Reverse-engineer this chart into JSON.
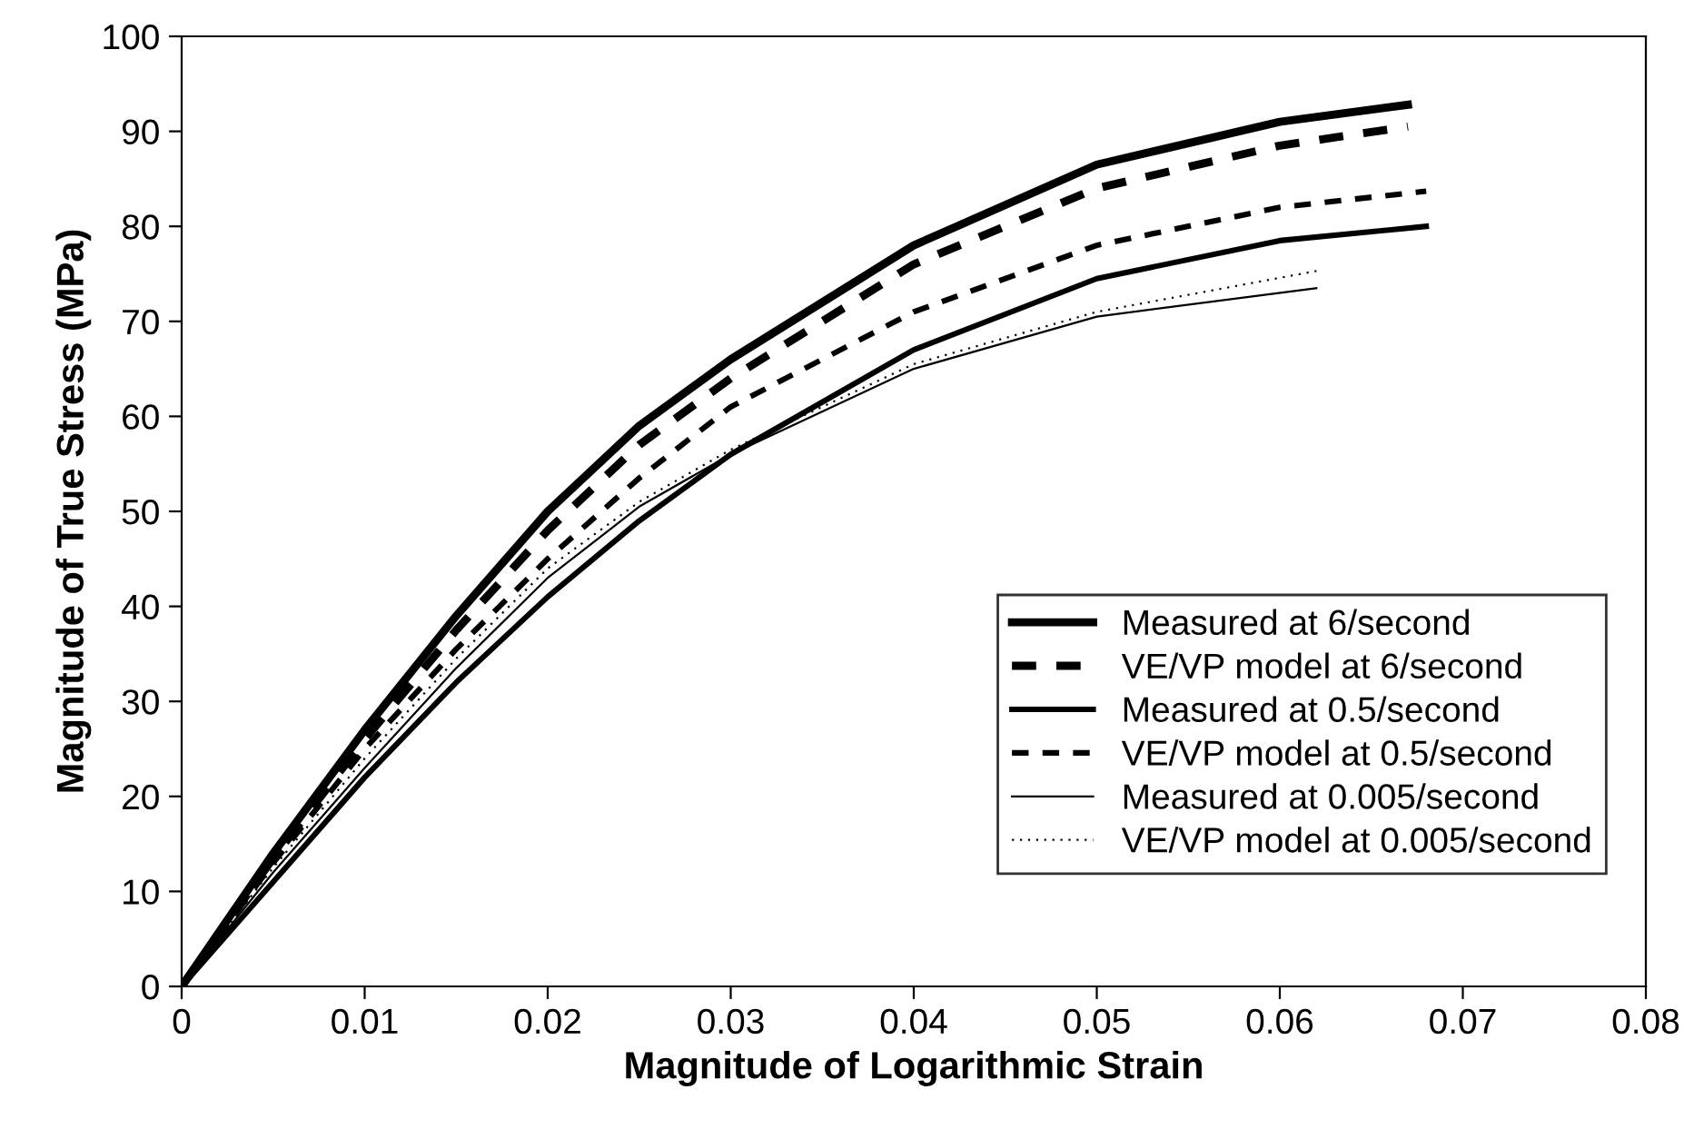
{
  "chart_data": {
    "type": "line",
    "xlabel": "Magnitude of Logarithmic Strain",
    "ylabel": "Magnitude of True Stress (MPa)",
    "xlim": [
      0,
      0.08
    ],
    "ylim": [
      0,
      100
    ],
    "xticks": [
      0,
      0.01,
      0.02,
      0.03,
      0.04,
      0.05,
      0.06,
      0.07,
      0.08
    ],
    "yticks": [
      0,
      10,
      20,
      30,
      40,
      50,
      60,
      70,
      80,
      90,
      100
    ],
    "grid": false,
    "legend": "bottom right",
    "marker": "none",
    "series": [
      {
        "name": "Measured at 6/second",
        "color": "#000000",
        "line_style": "solid",
        "x": [
          0,
          0.005,
          0.01,
          0.015,
          0.02,
          0.025,
          0.03,
          0.04,
          0.05,
          0.06,
          0.067
        ],
        "values": [
          0,
          14,
          27,
          39,
          50,
          59,
          66,
          78,
          86.5,
          91,
          92.8
        ]
      },
      {
        "name": "VE/VP model at 6/second",
        "color": "#000000",
        "line_style": "dashed",
        "x": [
          0,
          0.005,
          0.01,
          0.015,
          0.02,
          0.025,
          0.03,
          0.04,
          0.05,
          0.06,
          0.067
        ],
        "values": [
          0,
          13.5,
          26,
          37.5,
          48,
          57,
          64,
          76,
          84,
          88.5,
          90.5
        ]
      },
      {
        "name": "Measured at 0.5/second",
        "color": "#000000",
        "line_style": "solid",
        "x": [
          0,
          0.005,
          0.01,
          0.015,
          0.02,
          0.025,
          0.03,
          0.04,
          0.05,
          0.06,
          0.068
        ],
        "values": [
          0,
          11,
          22,
          32,
          41,
          49,
          56,
          67,
          74.5,
          78.5,
          80
        ]
      },
      {
        "name": "VE/VP model at 0.5/second",
        "color": "#000000",
        "line_style": "dashed",
        "x": [
          0,
          0.005,
          0.01,
          0.015,
          0.02,
          0.025,
          0.03,
          0.04,
          0.05,
          0.06,
          0.068
        ],
        "values": [
          0,
          13,
          25,
          35.5,
          45,
          53.5,
          61,
          71,
          78,
          82,
          83.7
        ]
      },
      {
        "name": "Measured at 0.005/second",
        "color": "#000000",
        "line_style": "solid",
        "x": [
          0,
          0.005,
          0.01,
          0.015,
          0.02,
          0.025,
          0.03,
          0.04,
          0.05,
          0.062
        ],
        "values": [
          0,
          12,
          23,
          33.5,
          43,
          50.5,
          56,
          65,
          70.5,
          73.5
        ]
      },
      {
        "name": "VE/VP model at 0.005/second",
        "color": "#000000",
        "line_style": "dotted",
        "x": [
          0,
          0.005,
          0.01,
          0.015,
          0.02,
          0.025,
          0.03,
          0.04,
          0.05,
          0.062
        ],
        "values": [
          0,
          12.5,
          24,
          34.5,
          44,
          51,
          56.5,
          65.5,
          71,
          75.3
        ]
      }
    ]
  }
}
